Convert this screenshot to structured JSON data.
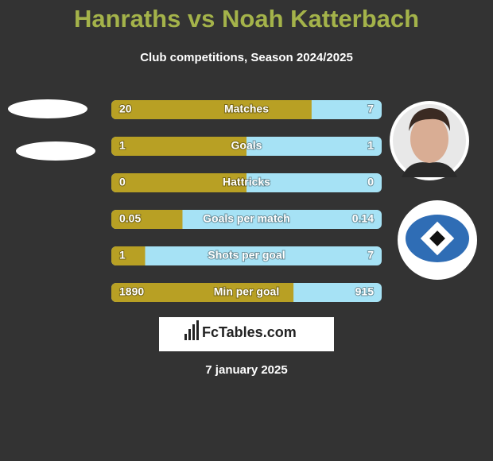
{
  "header": {
    "title": "Hanraths vs Noah Katterbach",
    "subtitle": "Club competitions, Season 2024/2025"
  },
  "rows": [
    {
      "label": "Matches",
      "left": 20,
      "right": 7
    },
    {
      "label": "Goals",
      "left": 1,
      "right": 1
    },
    {
      "label": "Hattricks",
      "left": 0,
      "right": 0
    },
    {
      "label": "Goals per match",
      "left": 0.05,
      "right": 0.14
    },
    {
      "label": "Shots per goal",
      "left": 1,
      "right": 7
    },
    {
      "label": "Min per goal",
      "left": 1890,
      "right": 915
    }
  ],
  "colors": {
    "left": "#b8a024",
    "right": "#a6e2f5"
  },
  "brand": "FcTables.com",
  "date": "7 january 2025"
}
